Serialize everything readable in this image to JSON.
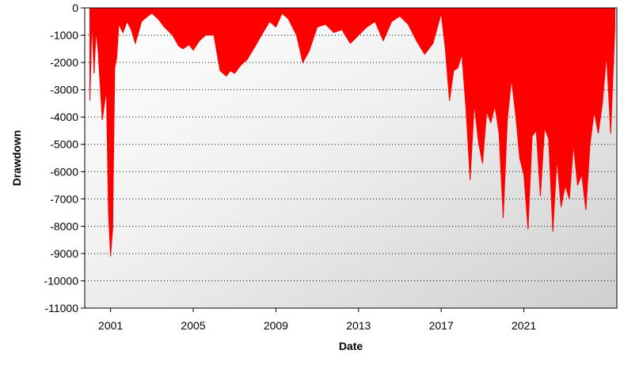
{
  "chart_data": {
    "type": "area",
    "xlabel": "Date",
    "ylabel": "Drawdown",
    "ylim": [
      -11000,
      0
    ],
    "xlim": [
      1999.75,
      2025.5
    ],
    "yticks": [
      0,
      -1000,
      -2000,
      -3000,
      -4000,
      -5000,
      -6000,
      -7000,
      -8000,
      -9000,
      -10000,
      -11000
    ],
    "xticks": [
      "2001",
      "2005",
      "2009",
      "2013",
      "2017",
      "2021"
    ],
    "grid": "horizontal dotted",
    "background": "gradient white to light gray",
    "series": [
      {
        "color": "#ff0000",
        "x": [
          2000.0,
          2000.1,
          2000.2,
          2000.3,
          2000.4,
          2000.6,
          2000.8,
          2000.9,
          2001.0,
          2001.1,
          2001.2,
          2001.3,
          2001.4,
          2001.6,
          2001.8,
          2002.0,
          2002.2,
          2002.5,
          2002.8,
          2003.0,
          2003.3,
          2003.6,
          2004.0,
          2004.3,
          2004.5,
          2004.8,
          2005.0,
          2005.3,
          2005.6,
          2006.0,
          2006.3,
          2006.6,
          2006.8,
          2007.0,
          2007.3,
          2007.6,
          2008.0,
          2008.3,
          2008.7,
          2009.0,
          2009.3,
          2009.6,
          2010.0,
          2010.3,
          2010.6,
          2011.0,
          2011.4,
          2011.8,
          2012.2,
          2012.6,
          2013.0,
          2013.4,
          2013.8,
          2014.2,
          2014.6,
          2015.0,
          2015.4,
          2015.8,
          2016.2,
          2016.6,
          2017.0,
          2017.2,
          2017.4,
          2017.6,
          2017.8,
          2018.0,
          2018.2,
          2018.4,
          2018.6,
          2018.8,
          2019.0,
          2019.2,
          2019.4,
          2019.6,
          2019.8,
          2020.0,
          2020.2,
          2020.4,
          2020.6,
          2020.8,
          2021.0,
          2021.2,
          2021.4,
          2021.6,
          2021.8,
          2022.0,
          2022.2,
          2022.4,
          2022.6,
          2022.8,
          2023.0,
          2023.2,
          2023.4,
          2023.6,
          2023.8,
          2024.0,
          2024.2,
          2024.4,
          2024.6,
          2024.8,
          2025.0,
          2025.2,
          2025.4
        ],
        "y": [
          -3400,
          -400,
          -2400,
          -800,
          -1600,
          -4100,
          -3000,
          -7500,
          -9100,
          -8100,
          -2200,
          -1800,
          -600,
          -900,
          -500,
          -800,
          -1300,
          -500,
          -300,
          -200,
          -400,
          -700,
          -1000,
          -1400,
          -1500,
          -1350,
          -1550,
          -1200,
          -1000,
          -1000,
          -2300,
          -2500,
          -2300,
          -2400,
          -2100,
          -1900,
          -1400,
          -1000,
          -500,
          -700,
          -200,
          -400,
          -1000,
          -2000,
          -1600,
          -700,
          -600,
          -900,
          -800,
          -1300,
          -1000,
          -700,
          -500,
          -1200,
          -500,
          -300,
          -600,
          -1200,
          -1700,
          -1300,
          -200,
          -1500,
          -3400,
          -2300,
          -2200,
          -1700,
          -3700,
          -6300,
          -3500,
          -4900,
          -5700,
          -3800,
          -4200,
          -3600,
          -4600,
          -7700,
          -4100,
          -2600,
          -3900,
          -5500,
          -6100,
          -8100,
          -4700,
          -4500,
          -6900,
          -4400,
          -4800,
          -8200,
          -5500,
          -7300,
          -6500,
          -7000,
          -5000,
          -6500,
          -6100,
          -7400,
          -5000,
          -3800,
          -4600,
          -3500,
          -1700,
          -4600,
          -800
        ]
      }
    ]
  }
}
